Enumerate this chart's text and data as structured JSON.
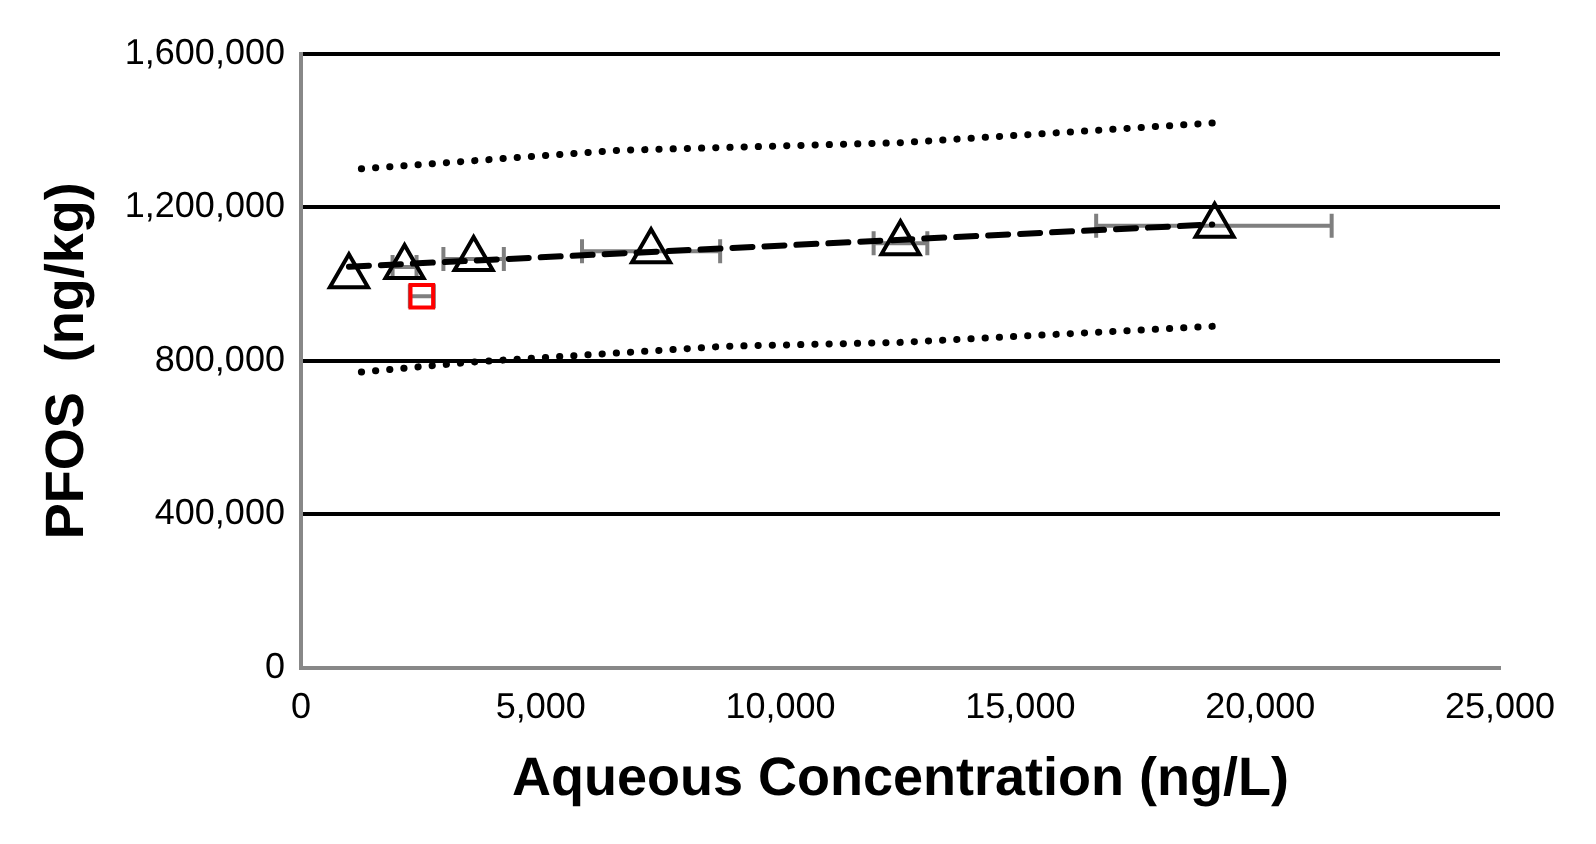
{
  "chart_data": {
    "type": "scatter",
    "xlabel": "Aqueous Concentration (ng/L)",
    "ylabel": "PFOS  (ng/kg)",
    "xlim": [
      0,
      25000
    ],
    "xticks": [
      {
        "value": 0,
        "label": "0"
      },
      {
        "value": 5000,
        "label": "5,000"
      },
      {
        "value": 10000,
        "label": "10,000"
      },
      {
        "value": 15000,
        "label": "15,000"
      },
      {
        "value": 20000,
        "label": "20,000"
      },
      {
        "value": 25000,
        "label": "25,000"
      }
    ],
    "ylim": [
      0,
      1600000
    ],
    "yticks": [
      {
        "value": 0,
        "label": "0"
      },
      {
        "value": 400000,
        "label": "400,000"
      },
      {
        "value": 800000,
        "label": "800,000"
      },
      {
        "value": 1200000,
        "label": "1,200,000"
      },
      {
        "value": 1600000,
        "label": "1,600,000"
      }
    ],
    "grid": "y",
    "legend": false,
    "marker": "triangle",
    "series": [
      {
        "type": "line",
        "color": "#000000",
        "line_style": "dotted",
        "marker": "none",
        "x": [
          1260,
          6600,
          12500,
          19100
        ],
        "values": [
          1300000,
          1348000,
          1368000,
          1420000
        ]
      },
      {
        "type": "line",
        "color": "#000000",
        "line_style": "dotted",
        "marker": "none",
        "x": [
          1260,
          3600,
          8870,
          12500,
          19050
        ],
        "values": [
          771000,
          797000,
          838000,
          848000,
          890000
        ]
      },
      {
        "type": "line",
        "color": "#000000",
        "line_style": "dashed",
        "marker": "none",
        "x": [
          1000,
          19000
        ],
        "values": [
          1045000,
          1155000
        ]
      },
      {
        "color": "#000000",
        "x": [
          1000,
          2160,
          3600,
          7300,
          12500,
          19050
        ],
        "values": [
          1020000,
          1044000,
          1065000,
          1085000,
          1106000,
          1152000
        ],
        "xerrors": [
          null,
          250,
          [
            2970,
            4230
          ],
          [
            5860,
            8740
          ],
          [
            11940,
            13060
          ],
          [
            16580,
            21490
          ]
        ]
      },
      {
        "type": "scatter",
        "color": "#ff0000",
        "marker": "square",
        "x": [
          2520
        ],
        "values": [
          968000
        ],
        "xerrors": [
          250
        ]
      }
    ]
  }
}
